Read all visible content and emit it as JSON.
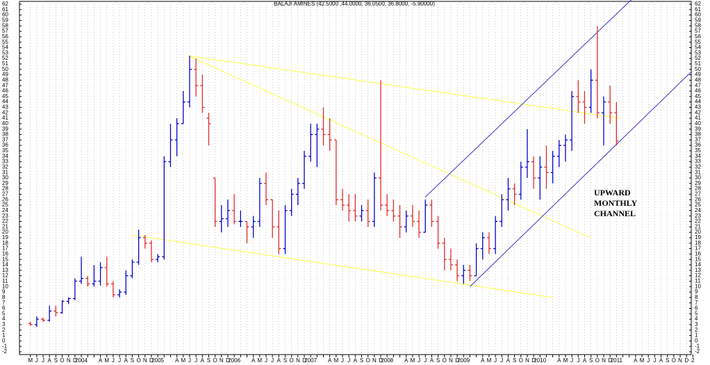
{
  "chart_data": {
    "type": "ohlc",
    "title": "BALAJI AMINES (42.5000 ,44.0000, 36.0500, 36.8000, -5.90000)",
    "annotations": [
      "UPWARD",
      "MONTHLY",
      "CHANNEL"
    ],
    "up_color": "#0000cc",
    "down_color": "#e02828",
    "grid": true,
    "ylim": [
      -2,
      62
    ],
    "yticks": [
      -2,
      -1,
      0,
      1,
      2,
      3,
      4,
      5,
      6,
      7,
      8,
      9,
      10,
      11,
      12,
      13,
      14,
      15,
      16,
      17,
      18,
      19,
      20,
      21,
      22,
      23,
      24,
      25,
      26,
      27,
      28,
      29,
      30,
      31,
      32,
      33,
      34,
      35,
      36,
      37,
      38,
      39,
      40,
      41,
      42,
      43,
      44,
      45,
      46,
      47,
      48,
      49,
      50,
      51,
      52,
      53,
      54,
      55,
      56,
      57,
      58,
      59,
      60,
      61,
      62
    ],
    "categories": [
      "M",
      "J",
      "J",
      "A",
      "S",
      "O",
      "N",
      "D",
      "2004",
      null,
      null,
      "A",
      "M",
      "J",
      "J",
      "A",
      "S",
      "O",
      "N",
      "D",
      "2005",
      null,
      null,
      "A",
      "M",
      "J",
      "J",
      "A",
      "S",
      "O",
      "N",
      "D",
      "2006",
      null,
      null,
      "A",
      "M",
      "J",
      "J",
      "A",
      "S",
      "O",
      "N",
      "D",
      "2007",
      null,
      null,
      "A",
      "M",
      "J",
      "J",
      "A",
      "S",
      "O",
      "N",
      "D",
      "2008",
      null,
      null,
      "A",
      "M",
      "J",
      "J",
      "A",
      "S",
      "O",
      "N",
      "D",
      "2009",
      null,
      null,
      "A",
      "M",
      "J",
      "J",
      "A",
      "S",
      "O",
      "N",
      "D",
      "2010",
      null,
      null,
      "A",
      "M",
      "J",
      "J",
      "A",
      "S",
      "O",
      "N",
      "D",
      "2011",
      null,
      null,
      "A",
      "M",
      "J",
      "J",
      "A",
      "S",
      "O",
      "N",
      "D",
      "2"
    ],
    "open": [
      3.2,
      3,
      4,
      3.8,
      5.5,
      5.2,
      7.3,
      7.8,
      11,
      11.5,
      10.5,
      11,
      13.5,
      10.5,
      8.5,
      9,
      12,
      14.5,
      19,
      18,
      15,
      15.5,
      33,
      37,
      40,
      44,
      50,
      47,
      41,
      30,
      22,
      22.5,
      24,
      22,
      22,
      21,
      22,
      29,
      26,
      21,
      17,
      24,
      27,
      29,
      34,
      38,
      39,
      38,
      37,
      26,
      25,
      24,
      23,
      24,
      22,
      30,
      25,
      24,
      23,
      21,
      23,
      22,
      20,
      25,
      22,
      18,
      15,
      14,
      12,
      13,
      12,
      17,
      19,
      17,
      22,
      26,
      28,
      27,
      32,
      33,
      30,
      32,
      31,
      34,
      36,
      37,
      45,
      44,
      43,
      48,
      42,
      44,
      42,
      null,
      null,
      null,
      null,
      null,
      null,
      null,
      null,
      null,
      null,
      null,
      null
    ],
    "high": [
      3.5,
      4.5,
      4.3,
      6.5,
      6.5,
      7.5,
      8,
      11.5,
      15.5,
      12,
      14,
      14.5,
      15.5,
      11,
      9.5,
      13,
      15,
      20.5,
      19.5,
      18.5,
      16,
      34,
      40,
      41,
      46,
      52.5,
      52,
      49,
      42,
      30,
      25,
      26,
      27,
      24,
      22,
      23,
      30,
      31,
      26,
      24,
      25,
      28,
      30,
      35,
      40,
      40,
      43,
      41,
      37,
      28,
      27,
      27,
      25,
      26,
      31,
      48,
      27,
      26,
      25,
      24,
      25,
      24,
      26,
      26,
      23,
      19,
      17,
      15,
      14,
      14,
      18,
      20,
      20,
      23,
      27,
      30,
      29,
      33,
      39,
      34,
      34,
      36,
      35,
      37,
      38,
      46,
      48,
      46,
      50,
      58,
      45,
      47,
      44,
      null,
      null,
      null,
      null,
      null,
      null,
      null,
      null,
      null,
      null,
      null,
      null
    ],
    "low": [
      2.8,
      2.6,
      3.5,
      3.6,
      4.5,
      5,
      6.8,
      7.5,
      10.5,
      10,
      10,
      10.2,
      10,
      8,
      8,
      8.5,
      11.5,
      14,
      17,
      14.5,
      14.5,
      15,
      32,
      34,
      40,
      43,
      45,
      42,
      36,
      21,
      20,
      21,
      21.5,
      21,
      18,
      19,
      21,
      25,
      19,
      16,
      16,
      23,
      25,
      28,
      33,
      32,
      36,
      35,
      25,
      24,
      22,
      22,
      22,
      21,
      21,
      24,
      23,
      22,
      19,
      20,
      21,
      19,
      20,
      21,
      17,
      13,
      13,
      11,
      10.5,
      11,
      12,
      15,
      16,
      16,
      21,
      24,
      25,
      26,
      30,
      28,
      26,
      28,
      29,
      32,
      33,
      35,
      42,
      40,
      42,
      41,
      36,
      40,
      36,
      null,
      null,
      null,
      null,
      null,
      null,
      null,
      null,
      null,
      null,
      null,
      null
    ],
    "close": [
      3,
      4,
      3.8,
      5.5,
      5.2,
      7.3,
      7.8,
      11,
      11.5,
      10.5,
      11,
      13.5,
      10.5,
      8.5,
      9,
      12,
      14.5,
      19,
      18,
      15,
      15.5,
      33,
      37,
      40,
      44,
      50,
      47,
      43,
      40,
      22,
      22.5,
      24,
      22,
      22,
      21,
      22,
      29,
      26,
      21,
      17,
      24,
      27,
      29,
      34,
      38,
      39,
      38,
      37,
      26,
      25,
      24,
      23,
      24,
      22,
      30,
      25,
      24,
      23,
      21,
      23,
      22,
      20,
      25,
      22,
      18,
      15,
      14,
      12,
      13,
      12,
      17,
      19,
      17,
      22,
      26,
      28,
      27,
      32,
      33,
      30,
      32,
      31,
      34,
      36,
      37,
      45,
      44,
      43,
      48,
      42,
      44,
      42,
      36.8,
      null,
      null,
      null,
      null,
      null,
      null,
      null,
      null,
      null,
      null,
      null,
      null
    ],
    "trendlines": [
      {
        "color": "#ffff44",
        "points": [
          [
            24.8,
            52.5
          ],
          [
            92.6,
            41
          ]
        ]
      },
      {
        "color": "#ffff44",
        "points": [
          [
            24.8,
            52.5
          ],
          [
            87.9,
            19
          ]
        ]
      },
      {
        "color": "#ffff44",
        "points": [
          [
            16,
            19.5
          ],
          [
            82,
            8
          ]
        ]
      },
      {
        "color": "#3333cc",
        "points": [
          [
            69,
            10
          ],
          [
            103.7,
            49.5
          ]
        ]
      },
      {
        "color": "#3333cc",
        "points": [
          [
            62,
            26.5
          ],
          [
            94.5,
            63
          ]
        ]
      }
    ]
  }
}
